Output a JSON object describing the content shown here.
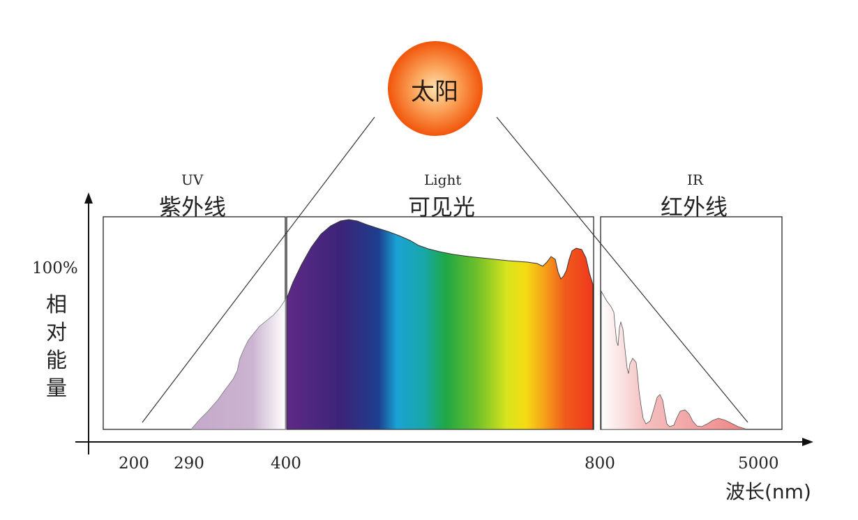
{
  "sun": {
    "label": "太阳"
  },
  "regions": {
    "uv": {
      "label_en": "UV",
      "label_zh": "紫外线"
    },
    "light": {
      "label_en": "Light",
      "label_zh": "可见光"
    },
    "ir": {
      "label_en": "IR",
      "label_zh": "红外线"
    }
  },
  "y_axis": {
    "top_value": "100%",
    "label_chars": [
      "相",
      "对",
      "能",
      "量"
    ]
  },
  "x_axis": {
    "label": "波长(nm)",
    "ticks": [
      "200",
      "290",
      "400",
      "800",
      "5000"
    ]
  },
  "colors": {
    "sun_center": "#fcd9a0",
    "sun_edge": "#f25a0c",
    "uv_fill": "#c9b0cf",
    "ir_fill": "#f08a8a",
    "axis": "#111111"
  }
}
